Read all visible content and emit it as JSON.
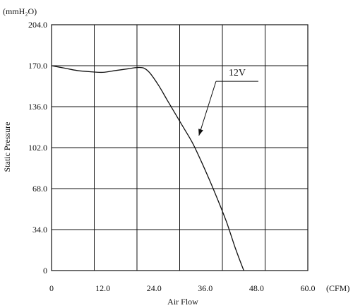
{
  "chart_data": {
    "type": "line",
    "title": "",
    "xlabel": "Air Flow",
    "ylabel": "Static Pressure",
    "x_unit": "(CFM)",
    "y_unit": "(mmH₂O)",
    "xlim": [
      0,
      60
    ],
    "ylim": [
      0,
      204
    ],
    "x_ticks": [
      0,
      12,
      24,
      36,
      48,
      60
    ],
    "x_tick_labels": [
      "0",
      "12.0",
      "24.0",
      "36.0",
      "48.0",
      "60.0"
    ],
    "y_ticks": [
      0,
      34,
      68,
      102,
      136,
      170,
      204
    ],
    "y_tick_labels": [
      "0",
      "34.0",
      "68.0",
      "102.0",
      "136.0",
      "170.0",
      "204.0"
    ],
    "grid": true,
    "series": [
      {
        "name": "12V",
        "x": [
          0,
          3,
          6,
          9,
          12,
          15,
          18,
          20,
          21.6,
          23,
          25,
          27,
          29,
          31,
          33,
          35,
          37,
          39,
          41,
          43,
          45
        ],
        "y": [
          170,
          168,
          166,
          165,
          164.5,
          166,
          167.5,
          168.5,
          168,
          164,
          154,
          142,
          130,
          118,
          106,
          91,
          75,
          58,
          40,
          19,
          0
        ]
      }
    ],
    "annotations": [
      {
        "text": "12V",
        "x": 38.5,
        "y": 157,
        "arrow_to": [
          34.5,
          112
        ]
      }
    ]
  }
}
